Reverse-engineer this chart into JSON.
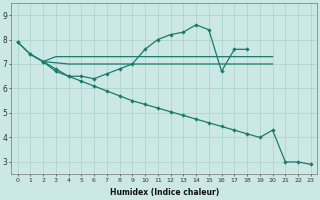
{
  "xlabel": "Humidex (Indice chaleur)",
  "background_color": "#cce8e4",
  "grid_color": "#aad0cc",
  "line_color": "#1a7a6e",
  "xlim": [
    -0.5,
    23.5
  ],
  "ylim": [
    2.5,
    9.5
  ],
  "xticks": [
    0,
    1,
    2,
    3,
    4,
    5,
    6,
    7,
    8,
    9,
    10,
    11,
    12,
    13,
    14,
    15,
    16,
    17,
    18,
    19,
    20,
    21,
    22,
    23
  ],
  "yticks": [
    3,
    4,
    5,
    6,
    7,
    8,
    9
  ],
  "line1_x": [
    0,
    1,
    2,
    3,
    4,
    5,
    6,
    7,
    8,
    9,
    10,
    11,
    12,
    13,
    14,
    15,
    16,
    17,
    18
  ],
  "line1_y": [
    7.9,
    7.4,
    7.1,
    6.7,
    6.5,
    6.5,
    6.4,
    6.6,
    6.8,
    7.0,
    7.6,
    8.0,
    8.2,
    8.3,
    8.6,
    8.4,
    6.7,
    7.6,
    7.6
  ],
  "line2_x": [
    1,
    2,
    3,
    4,
    5,
    6,
    7,
    8,
    9,
    10,
    11,
    12,
    13,
    14,
    15,
    16,
    17,
    18,
    19,
    20
  ],
  "line2_y": [
    7.4,
    7.1,
    7.05,
    7.0,
    7.0,
    7.0,
    7.0,
    7.0,
    7.0,
    7.0,
    7.0,
    7.0,
    7.0,
    7.0,
    7.0,
    7.0,
    7.0,
    7.0,
    7.0,
    7.0
  ],
  "line3_x": [
    2,
    3,
    4,
    5,
    6,
    7,
    8,
    9,
    10,
    11,
    12,
    13,
    14,
    15,
    16,
    17,
    18,
    19,
    20
  ],
  "line3_y": [
    7.1,
    7.3,
    7.3,
    7.3,
    7.3,
    7.3,
    7.3,
    7.3,
    7.3,
    7.3,
    7.3,
    7.3,
    7.3,
    7.3,
    7.3,
    7.3,
    7.3,
    7.3,
    7.3
  ],
  "line4_x": [
    0,
    1,
    2,
    3,
    4,
    5,
    6,
    7,
    8,
    9,
    10,
    11,
    12,
    13,
    14,
    15,
    16,
    17,
    18,
    19,
    20,
    21,
    22,
    23
  ],
  "line4_y": [
    7.9,
    7.4,
    7.1,
    6.8,
    6.5,
    6.3,
    6.1,
    5.9,
    5.7,
    5.5,
    5.35,
    5.2,
    5.05,
    4.9,
    4.75,
    4.6,
    4.45,
    4.3,
    4.15,
    4.0,
    4.3,
    3.0,
    3.0,
    2.9
  ]
}
